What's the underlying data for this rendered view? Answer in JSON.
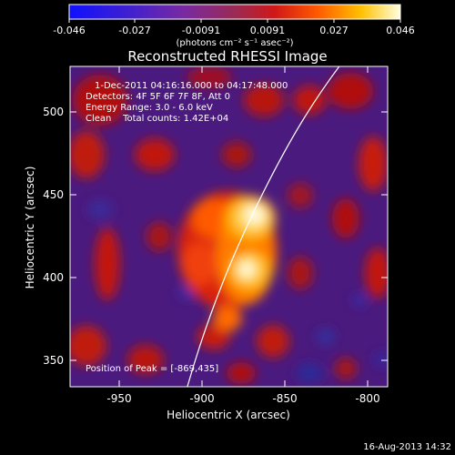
{
  "colorbar": {
    "tick_labels": [
      "-0.046",
      "-0.027",
      "-0.0091",
      "0.0091",
      "0.027",
      "0.046"
    ],
    "units": "(photons cm⁻² s⁻¹ asec⁻²)",
    "range": [
      -0.046,
      0.046
    ]
  },
  "title": "Reconstructed RHESSI Image",
  "annotations": {
    "time_range": "1-Dec-2011 04:16:16.000 to 04:17:48.000",
    "detectors": "Detectors: 4F 5F 6F 7F 8F, Att 0",
    "energy": "Energy Range: 3.0 - 6.0 keV",
    "clean": "Clean    Total counts: 1.42E+04",
    "peak": "Position of Peak = [-869,435]"
  },
  "axes": {
    "xlabel": "Heliocentric X (arcsec)",
    "ylabel": "Heliocentric Y (arcsec)",
    "x_ticks": [
      "-950",
      "-900",
      "-850",
      "-800"
    ],
    "y_ticks": [
      "350",
      "400",
      "450",
      "500"
    ],
    "x_range": [
      -978,
      -786
    ],
    "y_range": [
      335,
      527
    ]
  },
  "footer_timestamp": "16-Aug-2013 14:32",
  "image": {
    "peak_position": [
      -869,
      435
    ],
    "sources": [
      {
        "x": -869,
        "y": 437,
        "amp": 1.0,
        "sigma": 9
      },
      {
        "x": -871,
        "y": 406,
        "amp": 0.9,
        "sigma": 8
      },
      {
        "x": -884,
        "y": 420,
        "amp": 0.55,
        "sigma": 10
      },
      {
        "x": -864,
        "y": 452,
        "amp": 0.35,
        "sigma": 8
      }
    ]
  }
}
